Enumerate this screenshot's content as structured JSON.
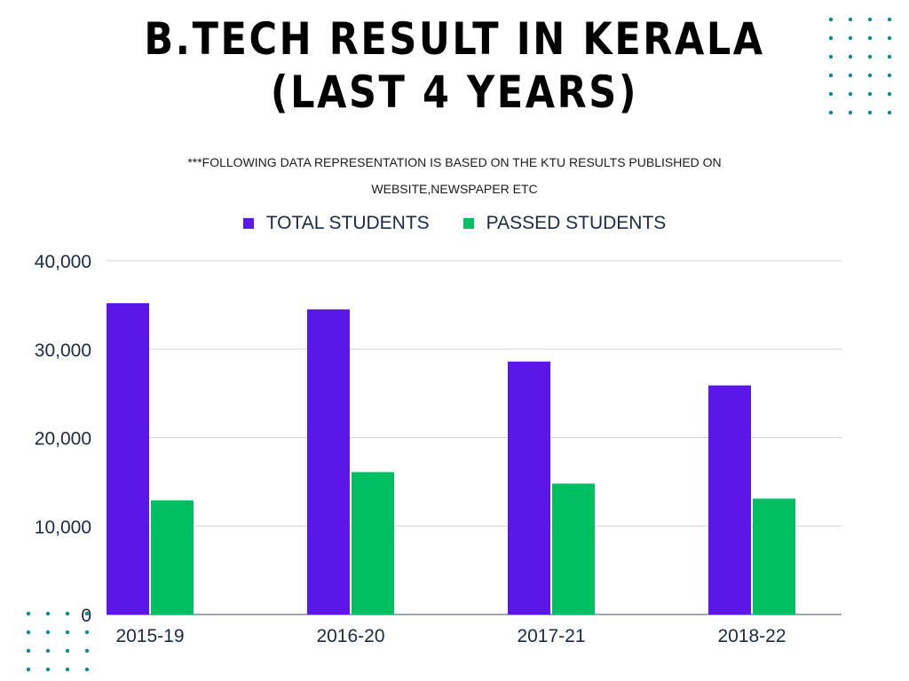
{
  "header": {
    "title_line1": "B.TECH RESULT IN KERALA",
    "title_line2": "(LAST 4 YEARS)",
    "subtitle_line1": "***FOLLOWING DATA REPRESENTATION IS BASED ON THE KTU RESULTS PUBLISHED ON",
    "subtitle_line2": "WEBSITE,NEWSPAPER ETC"
  },
  "colors": {
    "total": "#5b17e8",
    "passed": "#00bf63",
    "dots": "#0f8a8f",
    "axis_text": "#1b2a44"
  },
  "chart_data": {
    "type": "bar",
    "title": "B.TECH RESULT IN KERALA (LAST 4 YEARS)",
    "categories": [
      "2015-19",
      "2016-20",
      "2017-21",
      "2018-22"
    ],
    "series": [
      {
        "name": "TOTAL STUDENTS",
        "values": [
          35200,
          34500,
          28600,
          25900
        ]
      },
      {
        "name": "PASSED STUDENTS",
        "values": [
          12900,
          16100,
          14800,
          13100
        ]
      }
    ],
    "ylim": [
      0,
      40000
    ],
    "yticks": [
      "0",
      "10,000",
      "20,000",
      "30,000",
      "40,000"
    ],
    "ytick_values": [
      0,
      10000,
      20000,
      30000,
      40000
    ],
    "xlabel": "",
    "ylabel": "",
    "grid": true,
    "legend_position": "top-center"
  }
}
